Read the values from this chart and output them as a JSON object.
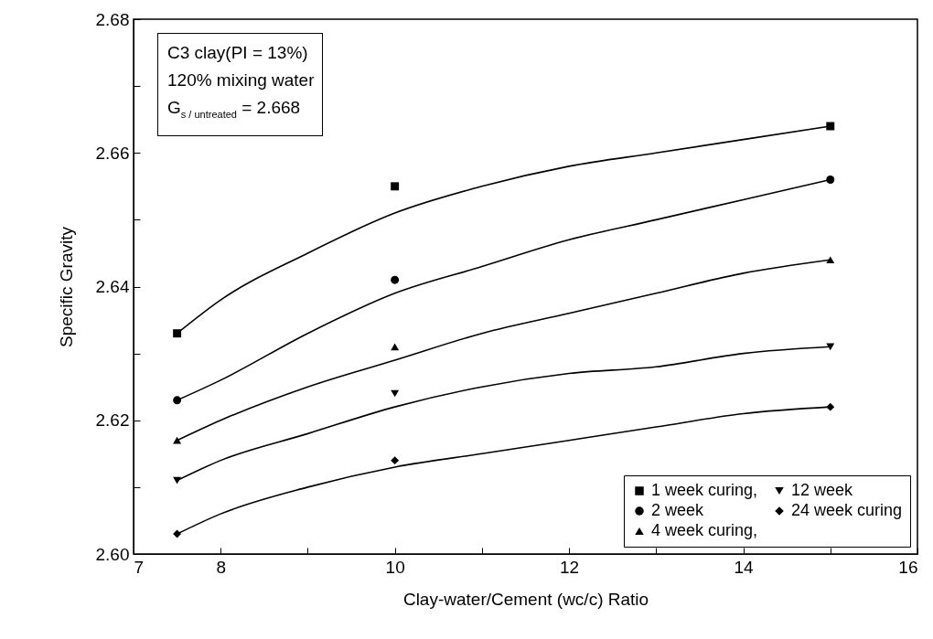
{
  "chart_data": {
    "type": "scatter",
    "xlabel": "Clay-water/Cement (wc/c) Ratio",
    "ylabel": "Specific Gravity",
    "xlim": [
      7,
      16
    ],
    "xticks": [
      7,
      8,
      {
        "value": 9,
        "label": null
      },
      10,
      {
        "value": 11,
        "label": null
      },
      12,
      {
        "value": 13,
        "label": null
      },
      14,
      {
        "value": 15,
        "label": null
      },
      16
    ],
    "ylim": [
      2.6,
      2.68
    ],
    "yticks": [
      {
        "value": 2.6,
        "label": "2.60"
      },
      {
        "value": 2.61,
        "label": null
      },
      {
        "value": 2.62,
        "label": "2.62"
      },
      {
        "value": 2.63,
        "label": null
      },
      {
        "value": 2.64,
        "label": "2.64"
      },
      {
        "value": 2.65,
        "label": null
      },
      {
        "value": 2.66,
        "label": "2.66"
      },
      {
        "value": 2.67,
        "label": null
      },
      {
        "value": 2.68,
        "label": "2.68"
      }
    ],
    "grid": false,
    "legend": "bottom right",
    "annotations": [
      "C3 clay(PI = 13%)",
      "120% mixing water",
      "G$_{s / untreated}$ = 2.668"
    ],
    "series": [
      {
        "name": "1 week curing,",
        "color": "#000000",
        "marker": "square",
        "x": [
          7.5,
          10,
          15
        ],
        "values": [
          2.633,
          2.655,
          2.664
        ]
      },
      {
        "name": "2 week",
        "color": "#000000",
        "marker": "circle",
        "x": [
          7.5,
          10,
          15
        ],
        "values": [
          2.623,
          2.641,
          2.656
        ]
      },
      {
        "name": "4 week curing,",
        "color": "#000000",
        "marker": "triangle",
        "x": [
          7.5,
          10,
          15
        ],
        "values": [
          2.617,
          2.631,
          2.644
        ]
      },
      {
        "name": "12 week",
        "color": "#000000",
        "marker": "triangle-down",
        "x": [
          7.5,
          10,
          15
        ],
        "values": [
          2.611,
          2.624,
          2.631
        ]
      },
      {
        "name": "24 week curing",
        "color": "#000000",
        "marker": "diamond",
        "x": [
          7.5,
          10,
          15
        ],
        "values": [
          2.603,
          2.614,
          2.622
        ]
      },
      {
        "type": "line",
        "color": "#000000",
        "marker": "none",
        "line_style": "solid",
        "x": [
          7.5,
          8,
          9,
          10,
          11,
          12,
          13,
          14,
          15
        ],
        "values": [
          2.633,
          2.638,
          2.645,
          2.651,
          2.655,
          2.658,
          2.66,
          2.662,
          2.664
        ]
      },
      {
        "type": "line",
        "color": "#000000",
        "marker": "none",
        "line_style": "solid",
        "x": [
          7.5,
          8,
          9,
          10,
          11,
          12,
          13,
          14,
          15
        ],
        "values": [
          2.623,
          2.626,
          2.633,
          2.639,
          2.643,
          2.647,
          2.65,
          2.653,
          2.656
        ]
      },
      {
        "type": "line",
        "color": "#000000",
        "marker": "none",
        "line_style": "solid",
        "x": [
          7.5,
          8,
          9,
          10,
          11,
          12,
          13,
          14,
          15
        ],
        "values": [
          2.617,
          2.62,
          2.625,
          2.629,
          2.633,
          2.636,
          2.639,
          2.642,
          2.644
        ]
      },
      {
        "type": "line",
        "color": "#000000",
        "marker": "none",
        "line_style": "solid",
        "x": [
          7.5,
          8,
          9,
          10,
          11,
          12,
          13,
          14,
          15
        ],
        "values": [
          2.611,
          2.614,
          2.618,
          2.622,
          2.625,
          2.627,
          2.628,
          2.63,
          2.631
        ]
      },
      {
        "type": "line",
        "color": "#000000",
        "marker": "none",
        "line_style": "solid",
        "x": [
          7.5,
          8,
          9,
          10,
          11,
          12,
          13,
          14,
          15
        ],
        "values": [
          2.603,
          2.606,
          2.61,
          2.613,
          2.615,
          2.617,
          2.619,
          2.621,
          2.622
        ]
      }
    ]
  }
}
